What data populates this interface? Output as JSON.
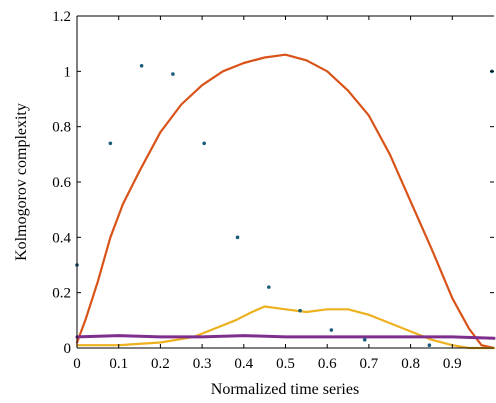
{
  "chart_data": {
    "type": "line",
    "title": "",
    "xlabel": "Normalized time series",
    "ylabel": "Kolmogorov complexity",
    "xlim": [
      0,
      1
    ],
    "ylim": [
      0,
      1.2
    ],
    "xticks": [
      0,
      0.1,
      0.2,
      0.3,
      0.4,
      0.5,
      0.6,
      0.7,
      0.8,
      0.9
    ],
    "xtick_labels": [
      "0",
      "0.1",
      "0.2",
      "0.3",
      "0.4",
      "0.5",
      "0.6",
      "0.7",
      "0.8",
      "0.9"
    ],
    "yticks": [
      0,
      0.2,
      0.4,
      0.6,
      0.8,
      1,
      1.2
    ],
    "ytick_labels": [
      "0",
      "0.2",
      "0.4",
      "0.6",
      "0.8",
      "1",
      "1.2"
    ],
    "grid": false,
    "legend": "none",
    "series": [
      {
        "color": "#d95319",
        "style": "line",
        "x": [
          0,
          0.02,
          0.05,
          0.08,
          0.11,
          0.15,
          0.2,
          0.25,
          0.3,
          0.35,
          0.4,
          0.45,
          0.5,
          0.55,
          0.6,
          0.65,
          0.7,
          0.75,
          0.8,
          0.85,
          0.9,
          0.94,
          0.97,
          1.0
        ],
        "y": [
          0.02,
          0.1,
          0.24,
          0.4,
          0.52,
          0.64,
          0.78,
          0.88,
          0.95,
          1.0,
          1.03,
          1.05,
          1.06,
          1.04,
          1.0,
          0.93,
          0.84,
          0.7,
          0.53,
          0.36,
          0.18,
          0.07,
          0.01,
          0.0
        ]
      },
      {
        "color": "#edb120",
        "style": "line",
        "x": [
          0,
          0.05,
          0.1,
          0.2,
          0.28,
          0.33,
          0.38,
          0.42,
          0.45,
          0.5,
          0.55,
          0.6,
          0.65,
          0.7,
          0.75,
          0.8,
          0.85,
          0.9,
          0.94,
          1.0
        ],
        "y": [
          0.01,
          0.01,
          0.01,
          0.02,
          0.04,
          0.07,
          0.1,
          0.13,
          0.15,
          0.14,
          0.13,
          0.14,
          0.14,
          0.12,
          0.09,
          0.06,
          0.03,
          0.01,
          0.0,
          0.0
        ]
      },
      {
        "color": "#7e2f8e",
        "style": "line",
        "x": [
          0,
          0.1,
          0.2,
          0.3,
          0.4,
          0.5,
          0.6,
          0.7,
          0.8,
          0.9,
          1.0
        ],
        "y": [
          0.04,
          0.045,
          0.04,
          0.04,
          0.045,
          0.04,
          0.04,
          0.04,
          0.04,
          0.04,
          0.035
        ]
      },
      {
        "color": "#1a5c7a",
        "style": "scatter",
        "x": [
          0.0,
          0.08,
          0.155,
          0.23,
          0.305,
          0.385,
          0.46,
          0.535,
          0.61,
          0.69,
          0.845,
          0.995
        ],
        "y": [
          0.3,
          0.74,
          1.02,
          0.99,
          0.74,
          0.4,
          0.22,
          0.135,
          0.065,
          0.03,
          0.01,
          1.0
        ]
      }
    ]
  }
}
